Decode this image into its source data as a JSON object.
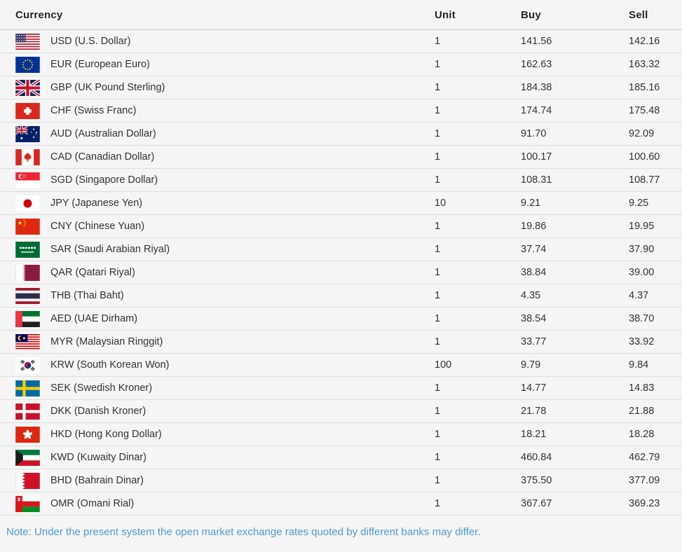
{
  "table": {
    "columns": {
      "currency": "Currency",
      "unit": "Unit",
      "buy": "Buy",
      "sell": "Sell"
    },
    "rows": [
      {
        "flag": "usd",
        "label": "USD (U.S. Dollar)",
        "unit": "1",
        "buy": "141.56",
        "sell": "142.16"
      },
      {
        "flag": "eur",
        "label": "EUR (European Euro)",
        "unit": "1",
        "buy": "162.63",
        "sell": "163.32"
      },
      {
        "flag": "gbp",
        "label": "GBP (UK Pound Sterling)",
        "unit": "1",
        "buy": "184.38",
        "sell": "185.16"
      },
      {
        "flag": "chf",
        "label": "CHF (Swiss Franc)",
        "unit": "1",
        "buy": "174.74",
        "sell": "175.48"
      },
      {
        "flag": "aud",
        "label": "AUD (Australian Dollar)",
        "unit": "1",
        "buy": "91.70",
        "sell": "92.09"
      },
      {
        "flag": "cad",
        "label": "CAD (Canadian Dollar)",
        "unit": "1",
        "buy": "100.17",
        "sell": "100.60"
      },
      {
        "flag": "sgd",
        "label": "SGD (Singapore Dollar)",
        "unit": "1",
        "buy": "108.31",
        "sell": "108.77"
      },
      {
        "flag": "jpy",
        "label": "JPY (Japanese Yen)",
        "unit": "10",
        "buy": "9.21",
        "sell": "9.25"
      },
      {
        "flag": "cny",
        "label": "CNY (Chinese Yuan)",
        "unit": "1",
        "buy": "19.86",
        "sell": "19.95"
      },
      {
        "flag": "sar",
        "label": "SAR (Saudi Arabian Riyal)",
        "unit": "1",
        "buy": "37.74",
        "sell": "37.90"
      },
      {
        "flag": "qar",
        "label": "QAR (Qatari Riyal)",
        "unit": "1",
        "buy": "38.84",
        "sell": "39.00"
      },
      {
        "flag": "thb",
        "label": "THB (Thai Baht)",
        "unit": "1",
        "buy": "4.35",
        "sell": "4.37"
      },
      {
        "flag": "aed",
        "label": "AED (UAE Dirham)",
        "unit": "1",
        "buy": "38.54",
        "sell": "38.70"
      },
      {
        "flag": "myr",
        "label": "MYR (Malaysian Ringgit)",
        "unit": "1",
        "buy": "33.77",
        "sell": "33.92"
      },
      {
        "flag": "krw",
        "label": "KRW (South Korean Won)",
        "unit": "100",
        "buy": "9.79",
        "sell": "9.84"
      },
      {
        "flag": "sek",
        "label": "SEK (Swedish Kroner)",
        "unit": "1",
        "buy": "14.77",
        "sell": "14.83"
      },
      {
        "flag": "dkk",
        "label": "DKK (Danish Kroner)",
        "unit": "1",
        "buy": "21.78",
        "sell": "21.88"
      },
      {
        "flag": "hkd",
        "label": "HKD (Hong Kong Dollar)",
        "unit": "1",
        "buy": "18.21",
        "sell": "18.28"
      },
      {
        "flag": "kwd",
        "label": "KWD (Kuwaity Dinar)",
        "unit": "1",
        "buy": "460.84",
        "sell": "462.79"
      },
      {
        "flag": "bhd",
        "label": "BHD (Bahrain Dinar)",
        "unit": "1",
        "buy": "375.50",
        "sell": "377.09"
      },
      {
        "flag": "omr",
        "label": "OMR (Omani Rial)",
        "unit": "1",
        "buy": "367.67",
        "sell": "369.23"
      }
    ]
  },
  "note": "Note: Under the present system the open market exchange rates quoted by different banks may differ.",
  "colors": {
    "background": "#f5f5f5",
    "header_text": "#262626",
    "body_text": "#333333",
    "divider": "#dedede",
    "note_text": "#4e9acc"
  }
}
